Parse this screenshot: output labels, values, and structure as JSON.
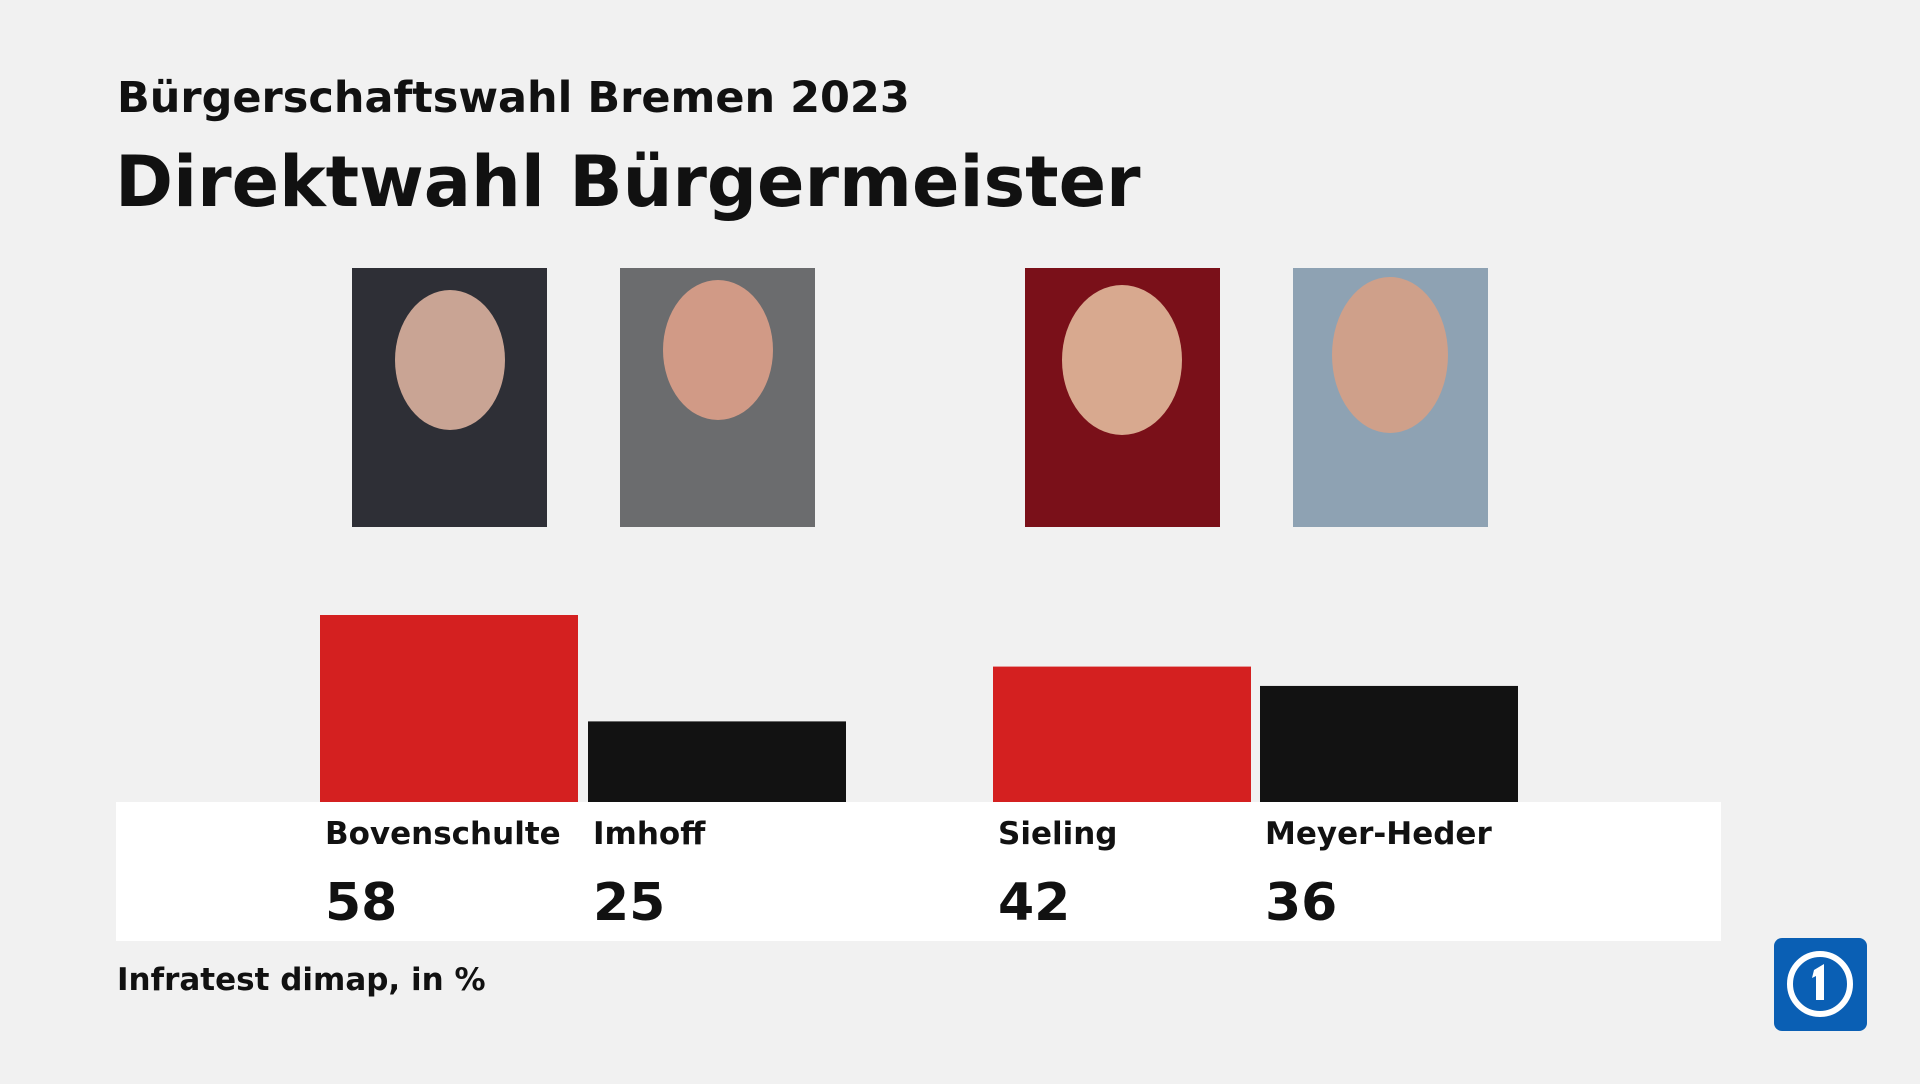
{
  "chart_data": {
    "type": "bar",
    "subtitle": "Bürgerschaftswahl Bremen 2023",
    "title": "Direktwahl Bürgermeister",
    "categories": [
      "Bovenschulte",
      "Imhoff",
      "Sieling",
      "Meyer-Heder"
    ],
    "values": [
      58,
      25,
      42,
      36
    ],
    "colors": [
      "#d42020",
      "#121212",
      "#d42020",
      "#121212"
    ],
    "source": "Infratest dimap, in %"
  }
}
